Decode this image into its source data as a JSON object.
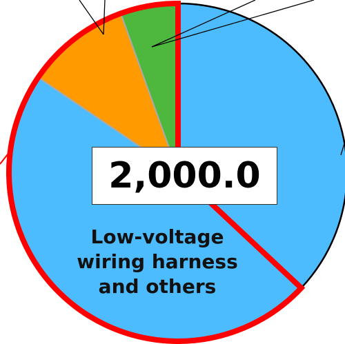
{
  "chart_data": {
    "type": "pie",
    "categories": [
      null,
      "Low-voltage wiring harness and others",
      null,
      null
    ],
    "values": [
      37,
      47.5,
      10,
      5.5
    ],
    "colors": [
      "#4dbcff",
      "#4dbcff",
      "#ff9a00",
      "#4db83d"
    ],
    "highlight": [
      1,
      2,
      3
    ],
    "highlight_color": "#ff0000",
    "center_label": "2,000.0"
  }
}
